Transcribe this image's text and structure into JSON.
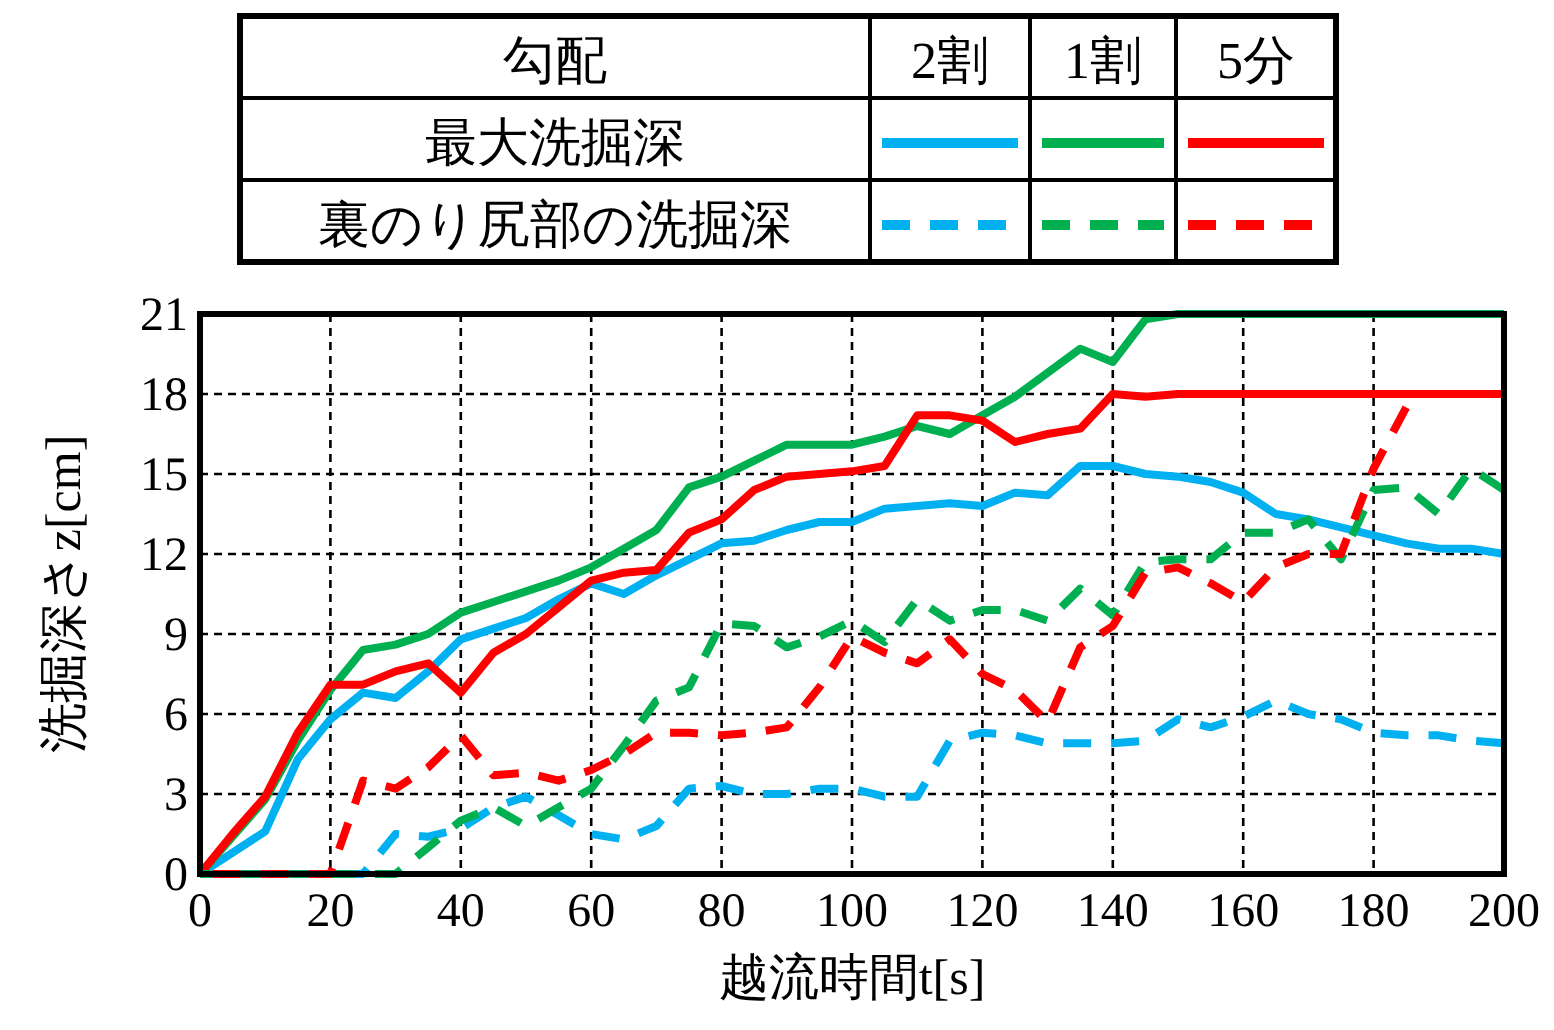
{
  "chart_data": {
    "type": "line",
    "xlabel": "越流時間t[s]",
    "ylabel": "洗掘深さz[cm]",
    "legend_title": "勾配",
    "annotations": [
      "2割",
      "1割",
      "5分",
      "最大洗掘深",
      "裏のり尻部の洗掘深"
    ],
    "x": [
      0,
      5,
      10,
      15,
      20,
      25,
      30,
      35,
      40,
      45,
      50,
      55,
      60,
      65,
      70,
      75,
      80,
      85,
      90,
      95,
      100,
      105,
      110,
      115,
      120,
      125,
      130,
      135,
      140,
      145,
      150,
      155,
      160,
      165,
      170,
      175,
      180,
      185,
      190,
      195,
      200
    ],
    "xlim": [
      0,
      200
    ],
    "xticks": [
      0,
      20,
      40,
      60,
      80,
      100,
      120,
      140,
      160,
      180,
      200
    ],
    "ylim": [
      0,
      21
    ],
    "yticks": [
      0,
      3,
      6,
      9,
      12,
      15,
      18,
      21
    ],
    "grid": true,
    "marker": "none",
    "series": [
      {
        "color": "#00b0f0",
        "line_style": "solid",
        "values": [
          0,
          0.8,
          1.6,
          4.3,
          5.8,
          6.8,
          6.6,
          7.6,
          8.8,
          9.2,
          9.6,
          10.3,
          10.9,
          10.5,
          11.2,
          11.8,
          12.4,
          12.5,
          12.9,
          13.2,
          13.2,
          13.7,
          13.8,
          13.9,
          13.8,
          14.3,
          14.2,
          15.3,
          15.3,
          15.0,
          14.9,
          14.7,
          14.3,
          13.5,
          13.3,
          13.0,
          12.7,
          12.4,
          12.2,
          12.2,
          12.0
        ]
      },
      {
        "color": "#00b050",
        "line_style": "solid",
        "values": [
          0,
          1.4,
          2.8,
          5.0,
          6.9,
          8.4,
          8.6,
          9.0,
          9.8,
          10.2,
          10.6,
          11.0,
          11.5,
          12.2,
          12.9,
          14.5,
          14.9,
          15.5,
          16.1,
          16.1,
          16.1,
          16.4,
          16.8,
          16.5,
          17.2,
          17.9,
          18.8,
          19.7,
          19.2,
          20.8,
          21,
          21,
          21,
          21,
          21,
          21,
          21,
          21,
          21,
          21,
          21
        ]
      },
      {
        "color": "#ff0000",
        "line_style": "solid",
        "values": [
          0,
          1.5,
          2.9,
          5.3,
          7.1,
          7.1,
          7.6,
          7.9,
          6.8,
          8.3,
          9.0,
          10.0,
          11.0,
          11.3,
          11.4,
          12.8,
          13.3,
          14.4,
          14.9,
          15.0,
          15.1,
          15.3,
          17.2,
          17.2,
          17.0,
          16.2,
          16.5,
          16.7,
          18.0,
          17.9,
          18,
          18,
          18,
          18,
          18,
          18,
          18,
          18,
          18,
          18,
          18
        ]
      },
      {
        "color": "#00b0f0",
        "line_style": "dashed",
        "values": [
          0,
          0,
          0,
          0,
          0,
          0,
          1.5,
          1.4,
          1.7,
          2.5,
          2.9,
          2.2,
          1.5,
          1.3,
          1.8,
          3.2,
          3.3,
          3.0,
          3.0,
          3.2,
          3.2,
          2.9,
          2.9,
          5.0,
          5.3,
          5.2,
          4.9,
          4.9,
          4.9,
          5.0,
          5.8,
          5.5,
          5.9,
          6.5,
          6.0,
          5.8,
          5.3,
          5.2,
          5.2,
          5.0,
          4.9
        ]
      },
      {
        "color": "#00b050",
        "line_style": "dashed",
        "values": [
          0,
          0,
          0,
          0,
          0,
          0,
          0,
          1.0,
          2.0,
          2.5,
          1.8,
          2.5,
          3.2,
          4.8,
          6.5,
          7.0,
          9.4,
          9.3,
          8.5,
          8.9,
          9.5,
          8.7,
          10.3,
          9.5,
          9.9,
          9.9,
          9.5,
          10.7,
          9.7,
          11.7,
          11.8,
          11.8,
          12.8,
          12.8,
          13.3,
          11.8,
          14.4,
          14.5,
          13.5,
          15.2,
          14.4
        ]
      },
      {
        "color": "#ff0000",
        "line_style": "dashed",
        "values": [
          0,
          0,
          0,
          0,
          0,
          3.5,
          3.2,
          4.0,
          5.2,
          3.7,
          3.8,
          3.5,
          3.9,
          4.5,
          5.3,
          5.3,
          5.2,
          5.3,
          5.5,
          7.0,
          8.9,
          8.3,
          7.9,
          8.8,
          7.5,
          6.9,
          5.7,
          8.5,
          9.3,
          11.3,
          11.5,
          10.9,
          10.2,
          11.5,
          12.0,
          12.0,
          15.2,
          17.5,
          null,
          null,
          null
        ]
      }
    ]
  }
}
